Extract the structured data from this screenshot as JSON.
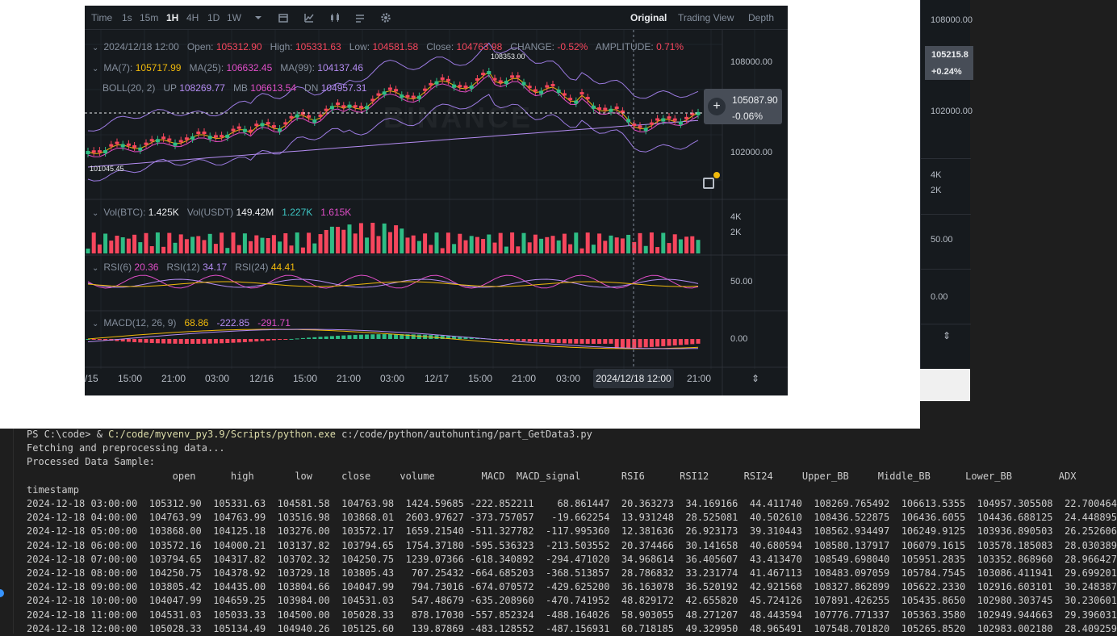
{
  "chart": {
    "toolbar": {
      "time_label": "Time",
      "intervals": [
        "1s",
        "15m",
        "1H",
        "4H",
        "1D",
        "1W"
      ],
      "active_interval": "1H",
      "views": [
        "Original",
        "Trading View",
        "Depth"
      ],
      "active_view": "Original"
    },
    "ohlc": {
      "date": "2024/12/18 12:00",
      "open_label": "Open:",
      "open": "105312.90",
      "high_label": "High:",
      "high": "105331.63",
      "low_label": "Low:",
      "low": "104581.58",
      "close_label": "Close:",
      "close": "104763.98",
      "change_label": "CHANGE:",
      "change": "-0.52%",
      "amplitude_label": "AMPLITUDE:",
      "amplitude": "0.71%"
    },
    "ma": {
      "ma7_label": "MA(7):",
      "ma7": "105717.99",
      "ma25_label": "MA(25):",
      "ma25": "106632.45",
      "ma99_label": "MA(99):",
      "ma99": "104137.46"
    },
    "boll": {
      "label": "BOLL(20, 2)",
      "up_label": "UP",
      "up": "108269.77",
      "mb_label": "MB",
      "mb": "106613.54",
      "dn_label": "DN",
      "dn": "104957.31"
    },
    "vol": {
      "btc_label": "Vol(BTC):",
      "btc": "1.425K",
      "usdt_label": "Vol(USDT)",
      "usdt": "149.42M",
      "v1": "1.227K",
      "v2": "1.615K"
    },
    "rsi": {
      "rsi6_label": "RSI(6)",
      "rsi6": "20.36",
      "rsi12_label": "RSI(12)",
      "rsi12": "34.17",
      "rsi24_label": "RSI(24)",
      "rsi24": "44.41"
    },
    "macd": {
      "label": "MACD(12, 26, 9)",
      "v1": "68.86",
      "v2": "-222.85",
      "v3": "-291.71"
    },
    "price_axis": [
      "108000.00",
      "102000.00"
    ],
    "volume_axis": [
      "4K",
      "2K"
    ],
    "rsi_axis": [
      "50.00"
    ],
    "macd_axis": [
      "0.00"
    ],
    "time_axis": [
      "/15",
      "15:00",
      "21:00",
      "03:00",
      "12/16",
      "15:00",
      "21:00",
      "03:00",
      "12/17",
      "15:00",
      "21:00",
      "03:00",
      "21:00"
    ],
    "crosshair_time": "2024/12/18 12:00",
    "current_price": "105087.90",
    "current_change": "-0.06%",
    "high_marker": "108353.00",
    "low_marker": "101045.45",
    "watermark": "BINANCE",
    "colors": {
      "up": "#2ebd85",
      "down": "#f6465d",
      "background": "#161a1e"
    },
    "icons": [
      "chevron-down-icon",
      "calendar-icon",
      "indicator-icon",
      "candle-type-icon",
      "layout-icon",
      "gear-icon",
      "plus-icon",
      "save-icon",
      "expand-icon"
    ]
  },
  "background_window": {
    "labels": [
      "108000.00",
      "102000.00",
      "4K",
      "2K",
      "50.00",
      "0.00"
    ],
    "price": "105215.8",
    "change": "+0.24%"
  },
  "terminal": {
    "prompt_prefix": "PS C:\\code> & ",
    "python_path": "C:/code/myvenv_py3.9/Scripts/python.exe",
    "script_path": " c:/code/python/autohunting/part_GetData3.py",
    "lines": [
      "Fetching and preprocessing data...",
      "Processed Data Sample:",
      "                         open      high       low     close     volume        MACD  MACD_signal       RSI6      RSI12      RSI24     Upper_BB     Middle_BB      Lower_BB        ADX",
      "timestamp",
      "2024-12-18 03:00:00  105312.90  105331.63  104581.58  104763.98  1424.59685 -222.852211    68.861447  20.363273  34.169166  44.411740  108269.765492  106613.5355  104957.305508  22.700464",
      "2024-12-18 04:00:00  104763.99  104763.99  103516.98  103868.01  2603.97627 -373.757057   -19.662254  13.931248  28.525081  40.502610  108436.522875  106436.6055  104436.688125  24.448895",
      "2024-12-18 05:00:00  103868.00  104125.18  103276.00  103572.17  1659.21540 -511.327782  -117.995360  12.381636  26.923173  39.310443  108562.934497  106249.9125  103936.890503  26.252606",
      "2024-12-18 06:00:00  103572.16  104000.21  103137.82  103794.65  1754.37180 -595.536323  -213.503552  20.374466  30.141658  40.680594  108580.137917  106079.1615  103578.185083  28.030389",
      "2024-12-18 07:00:00  103794.65  104317.82  103702.32  104250.75  1239.07366 -618.340892  -294.471020  34.968614  36.405607  43.413470  108549.698040  105951.2835  103352.868960  28.966427",
      "2024-12-18 08:00:00  104250.75  104378.92  103729.18  103805.43   707.25432 -664.685203  -368.513857  28.786832  33.231774  41.467113  108483.097059  105784.7545  103086.411941  29.699201",
      "2024-12-18 09:00:00  103805.42  104435.00  103804.66  104047.99   794.73016 -674.070572  -429.625200  36.163078  36.520192  42.921568  108327.862899  105622.2330  102916.603101  30.248387",
      "2024-12-18 10:00:00  104047.99  104659.25  103984.00  104531.03   547.48679 -635.208960  -470.741952  48.829172  42.655820  45.724126  107891.426255  105435.8650  102980.303745  30.230601",
      "2024-12-18 11:00:00  104531.03  105033.33  104500.00  105028.33   878.17030 -557.852324  -488.164026  58.903055  48.271207  48.443594  107776.771337  105363.3580  102949.944663  29.396031",
      "2024-12-18 12:00:00  105028.33  105134.49  104940.26  105125.60   139.87869 -483.128552  -487.156931  60.718185  49.329950  48.965491  107548.701820  105265.8520  102983.002180  28.409259"
    ]
  }
}
